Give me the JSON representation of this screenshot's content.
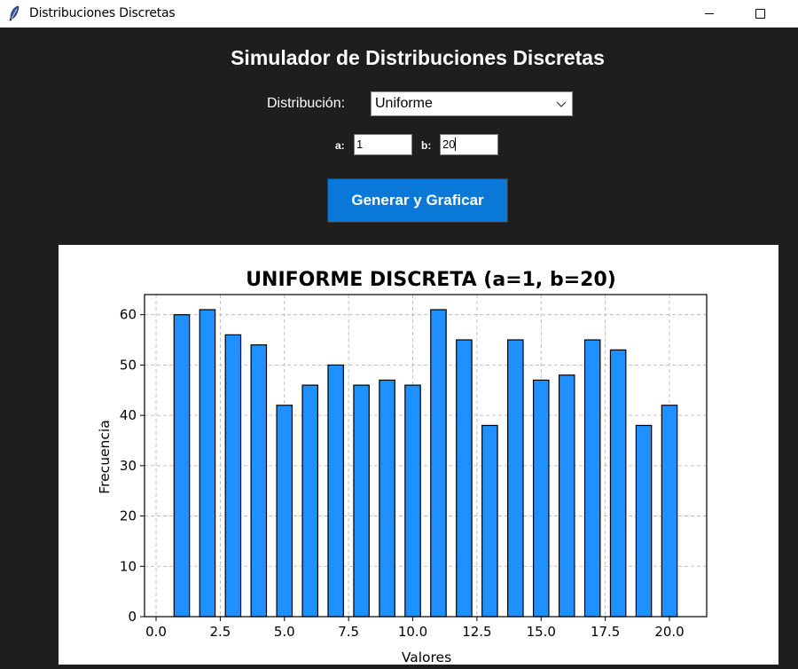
{
  "window": {
    "title": "Distribuciones Discretas"
  },
  "header": {
    "title": "Simulador de Distribuciones Discretas"
  },
  "controls": {
    "distribution_label": "Distribución:",
    "distribution_value": "Uniforme",
    "param_a_label": "a:",
    "param_a_value": "1",
    "param_b_label": "b:",
    "param_b_value": "20",
    "generate_label": "Generar y Graficar"
  },
  "colors": {
    "background": "#1e1e1e",
    "button": "#0a78d7",
    "bar": "#1e90ff"
  },
  "chart_data": {
    "type": "bar",
    "title": "UNIFORME DISCRETA (a=1, b=20)",
    "xlabel": "Valores",
    "ylabel": "Frecuencia",
    "categories": [
      1,
      2,
      3,
      4,
      5,
      6,
      7,
      8,
      9,
      10,
      11,
      12,
      13,
      14,
      15,
      16,
      17,
      18,
      19,
      20
    ],
    "values": [
      60,
      61,
      56,
      54,
      42,
      46,
      50,
      46,
      47,
      46,
      61,
      55,
      38,
      55,
      47,
      48,
      55,
      53,
      38,
      42
    ],
    "xlim": [
      -0.45,
      21.45
    ],
    "ylim": [
      0,
      64
    ],
    "xticks": [
      "0.0",
      "2.5",
      "5.0",
      "7.5",
      "10.0",
      "12.5",
      "15.0",
      "17.5",
      "20.0"
    ],
    "yticks": [
      "0",
      "10",
      "20",
      "30",
      "40",
      "50",
      "60"
    ],
    "grid": true,
    "bar_color": "#1e90ff",
    "edge_color": "#000000"
  }
}
